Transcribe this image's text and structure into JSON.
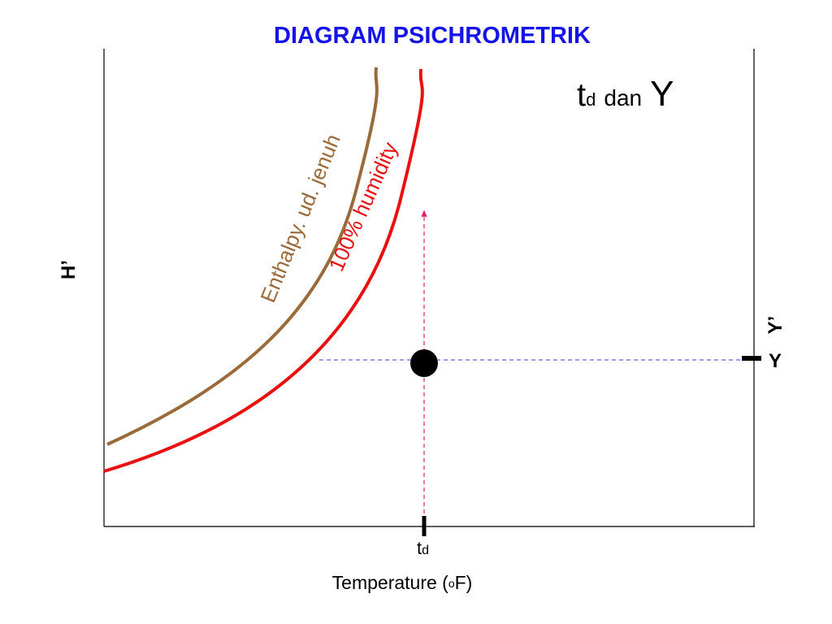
{
  "title": "DIAGRAM PSICHROMETRIK",
  "heading": {
    "t": "t",
    "sub": "d",
    "dan": "dan",
    "y": "Y"
  },
  "y_axis_label": "H’",
  "right_labels": {
    "y_prime": "Y’",
    "y": "Y"
  },
  "curves": {
    "enthalpy": "Enthalpy. ud. jenuh",
    "humidity": "100% humidity"
  },
  "td_label": {
    "t": "t",
    "sub": "d"
  },
  "x_axis_label": {
    "before": "Temperature (",
    "sup": "o",
    "after": "F)"
  }
}
